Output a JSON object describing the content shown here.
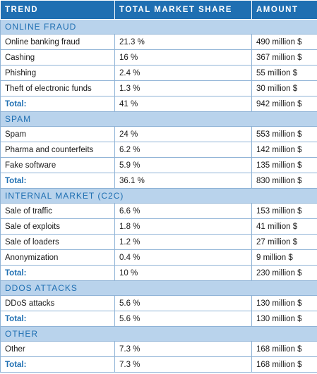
{
  "headers": {
    "trend": "TREND",
    "share": "TOTAL MARKET SHARE",
    "amount": "AMOUNT"
  },
  "sections": [
    {
      "title": "ONLINE FRAUD",
      "rows": [
        {
          "trend": "Online banking fraud",
          "share": "21.3 %",
          "amount": "490 million $"
        },
        {
          "trend": "Cashing",
          "share": "16 %",
          "amount": "367 million $"
        },
        {
          "trend": "Phishing",
          "share": "2.4 %",
          "amount": "55 million $"
        },
        {
          "trend": "Theft of electronic funds",
          "share": "1.3 %",
          "amount": "30 million $"
        }
      ],
      "total": {
        "label": "Total:",
        "share": "41 %",
        "amount": "942 million $"
      }
    },
    {
      "title": "SPAM",
      "rows": [
        {
          "trend": "Spam",
          "share": "24 %",
          "amount": "553 million $"
        },
        {
          "trend": "Pharma and counterfeits",
          "share": "6.2 %",
          "amount": "142 million $"
        },
        {
          "trend": "Fake software",
          "share": "5.9 %",
          "amount": "135 million $"
        }
      ],
      "total": {
        "label": "Total:",
        "share": "36.1 %",
        "amount": "830 million $"
      }
    },
    {
      "title": "INTERNAL MARKET (C2C)",
      "rows": [
        {
          "trend": "Sale of traffic",
          "share": "6.6 %",
          "amount": "153 million $"
        },
        {
          "trend": "Sale of exploits",
          "share": "1.8 %",
          "amount": "41 million $"
        },
        {
          "trend": "Sale of loaders",
          "share": "1.2 %",
          "amount": "27 million $"
        },
        {
          "trend": "Anonymization",
          "share": "0.4 %",
          "amount": "9 million $"
        }
      ],
      "total": {
        "label": "Total:",
        "share": "10 %",
        "amount": "230 million $"
      }
    },
    {
      "title": "DDOS ATTACKS",
      "rows": [
        {
          "trend": "DDoS attacks",
          "share": "5.6 %",
          "amount": "130 million $"
        }
      ],
      "total": {
        "label": "Total:",
        "share": "5.6 %",
        "amount": "130 million $"
      }
    },
    {
      "title": "OTHER",
      "rows": [
        {
          "trend": "Other",
          "share": "7.3 %",
          "amount": "168 million $"
        }
      ],
      "total": {
        "label": "Total:",
        "share": "7.3 %",
        "amount": "168 million $"
      }
    }
  ],
  "colors": {
    "header_bg": "#1f6fb2",
    "section_bg": "#b9d3ec",
    "accent": "#1f6fb2"
  }
}
